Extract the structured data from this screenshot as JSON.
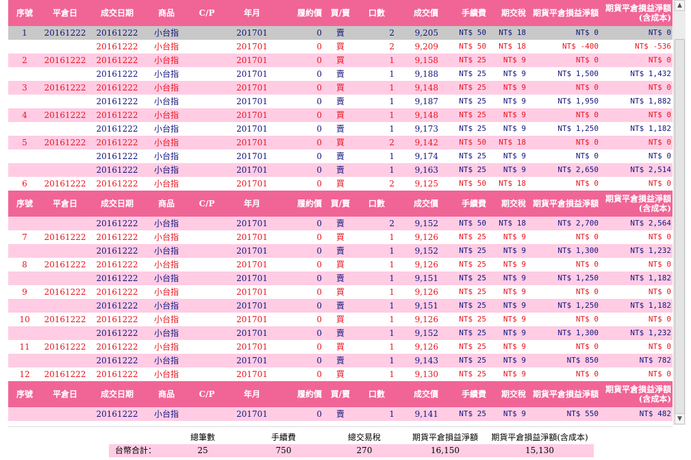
{
  "header": {
    "seq": "序號",
    "close_date": "平倉日",
    "trade_date": "成交日期",
    "product": "商品",
    "cp": "C/P",
    "month": "年月",
    "strike": "履約價",
    "side": "買/賣",
    "qty": "口數",
    "price": "成交價",
    "fee": "手續費",
    "tax": "期交稅",
    "pnl": "期貨平倉損益淨額",
    "net_line1": "期貨平倉損益淨額",
    "net_line2": "(含成本)"
  },
  "rows": [
    {
      "kind": "hdr"
    },
    {
      "seq": "1",
      "close": "20161222",
      "date": "20161222",
      "prod": "小台指",
      "month": "201701",
      "strike": "0",
      "side": "賣",
      "qty": "2",
      "price": "9,205",
      "fee": "NT$ 50",
      "tax": "NT$ 18",
      "pnl": "NT$ 0",
      "net": "NT$ 0",
      "color": "blue",
      "bg": "sel"
    },
    {
      "seq": "",
      "close": "",
      "date": "20161222",
      "prod": "小台指",
      "month": "201701",
      "strike": "0",
      "side": "買",
      "qty": "2",
      "price": "9,209",
      "fee": "NT$ 50",
      "tax": "NT$ 18",
      "pnl": "NT$ -400",
      "net": "NT$ -536",
      "color": "red",
      "bg": "white"
    },
    {
      "seq": "2",
      "close": "20161222",
      "date": "20161222",
      "prod": "小台指",
      "month": "201701",
      "strike": "0",
      "side": "買",
      "qty": "1",
      "price": "9,158",
      "fee": "NT$ 25",
      "tax": "NT$ 9",
      "pnl": "NT$ 0",
      "net": "NT$ 0",
      "color": "red",
      "bg": "pink"
    },
    {
      "seq": "",
      "close": "",
      "date": "20161222",
      "prod": "小台指",
      "month": "201701",
      "strike": "0",
      "side": "賣",
      "qty": "1",
      "price": "9,188",
      "fee": "NT$ 25",
      "tax": "NT$ 9",
      "pnl": "NT$ 1,500",
      "net": "NT$ 1,432",
      "color": "blue",
      "bg": "white"
    },
    {
      "seq": "3",
      "close": "20161222",
      "date": "20161222",
      "prod": "小台指",
      "month": "201701",
      "strike": "0",
      "side": "買",
      "qty": "1",
      "price": "9,148",
      "fee": "NT$ 25",
      "tax": "NT$ 9",
      "pnl": "NT$ 0",
      "net": "NT$ 0",
      "color": "red",
      "bg": "pink"
    },
    {
      "seq": "",
      "close": "",
      "date": "20161222",
      "prod": "小台指",
      "month": "201701",
      "strike": "0",
      "side": "賣",
      "qty": "1",
      "price": "9,187",
      "fee": "NT$ 25",
      "tax": "NT$ 9",
      "pnl": "NT$ 1,950",
      "net": "NT$ 1,882",
      "color": "blue",
      "bg": "white"
    },
    {
      "seq": "4",
      "close": "20161222",
      "date": "20161222",
      "prod": "小台指",
      "month": "201701",
      "strike": "0",
      "side": "買",
      "qty": "1",
      "price": "9,148",
      "fee": "NT$ 25",
      "tax": "NT$ 9",
      "pnl": "NT$ 0",
      "net": "NT$ 0",
      "color": "red",
      "bg": "pink"
    },
    {
      "seq": "",
      "close": "",
      "date": "20161222",
      "prod": "小台指",
      "month": "201701",
      "strike": "0",
      "side": "賣",
      "qty": "1",
      "price": "9,173",
      "fee": "NT$ 25",
      "tax": "NT$ 9",
      "pnl": "NT$ 1,250",
      "net": "NT$ 1,182",
      "color": "blue",
      "bg": "white"
    },
    {
      "seq": "5",
      "close": "20161222",
      "date": "20161222",
      "prod": "小台指",
      "month": "201701",
      "strike": "0",
      "side": "買",
      "qty": "2",
      "price": "9,142",
      "fee": "NT$ 50",
      "tax": "NT$ 18",
      "pnl": "NT$ 0",
      "net": "NT$ 0",
      "color": "red",
      "bg": "pink"
    },
    {
      "seq": "",
      "close": "",
      "date": "20161222",
      "prod": "小台指",
      "month": "201701",
      "strike": "0",
      "side": "賣",
      "qty": "1",
      "price": "9,174",
      "fee": "NT$ 25",
      "tax": "NT$ 9",
      "pnl": "NT$ 0",
      "net": "NT$ 0",
      "color": "blue",
      "bg": "white"
    },
    {
      "seq": "",
      "close": "",
      "date": "20161222",
      "prod": "小台指",
      "month": "201701",
      "strike": "0",
      "side": "賣",
      "qty": "1",
      "price": "9,163",
      "fee": "NT$ 25",
      "tax": "NT$ 9",
      "pnl": "NT$ 2,650",
      "net": "NT$ 2,514",
      "color": "blue",
      "bg": "pink"
    },
    {
      "seq": "6",
      "close": "20161222",
      "date": "20161222",
      "prod": "小台指",
      "month": "201701",
      "strike": "0",
      "side": "買",
      "qty": "2",
      "price": "9,125",
      "fee": "NT$ 50",
      "tax": "NT$ 18",
      "pnl": "NT$ 0",
      "net": "NT$ 0",
      "color": "red",
      "bg": "white"
    },
    {
      "kind": "hdr"
    },
    {
      "seq": "",
      "close": "",
      "date": "20161222",
      "prod": "小台指",
      "month": "201701",
      "strike": "0",
      "side": "賣",
      "qty": "2",
      "price": "9,152",
      "fee": "NT$ 50",
      "tax": "NT$ 18",
      "pnl": "NT$ 2,700",
      "net": "NT$ 2,564",
      "color": "blue",
      "bg": "pink"
    },
    {
      "seq": "7",
      "close": "20161222",
      "date": "20161222",
      "prod": "小台指",
      "month": "201701",
      "strike": "0",
      "side": "買",
      "qty": "1",
      "price": "9,126",
      "fee": "NT$ 25",
      "tax": "NT$ 9",
      "pnl": "NT$ 0",
      "net": "NT$ 0",
      "color": "red",
      "bg": "white"
    },
    {
      "seq": "",
      "close": "",
      "date": "20161222",
      "prod": "小台指",
      "month": "201701",
      "strike": "0",
      "side": "賣",
      "qty": "1",
      "price": "9,152",
      "fee": "NT$ 25",
      "tax": "NT$ 9",
      "pnl": "NT$ 1,300",
      "net": "NT$ 1,232",
      "color": "blue",
      "bg": "pink"
    },
    {
      "seq": "8",
      "close": "20161222",
      "date": "20161222",
      "prod": "小台指",
      "month": "201701",
      "strike": "0",
      "side": "買",
      "qty": "1",
      "price": "9,126",
      "fee": "NT$ 25",
      "tax": "NT$ 9",
      "pnl": "NT$ 0",
      "net": "NT$ 0",
      "color": "red",
      "bg": "white"
    },
    {
      "seq": "",
      "close": "",
      "date": "20161222",
      "prod": "小台指",
      "month": "201701",
      "strike": "0",
      "side": "賣",
      "qty": "1",
      "price": "9,151",
      "fee": "NT$ 25",
      "tax": "NT$ 9",
      "pnl": "NT$ 1,250",
      "net": "NT$ 1,182",
      "color": "blue",
      "bg": "pink"
    },
    {
      "seq": "9",
      "close": "20161222",
      "date": "20161222",
      "prod": "小台指",
      "month": "201701",
      "strike": "0",
      "side": "買",
      "qty": "1",
      "price": "9,126",
      "fee": "NT$ 25",
      "tax": "NT$ 9",
      "pnl": "NT$ 0",
      "net": "NT$ 0",
      "color": "red",
      "bg": "white"
    },
    {
      "seq": "",
      "close": "",
      "date": "20161222",
      "prod": "小台指",
      "month": "201701",
      "strike": "0",
      "side": "賣",
      "qty": "1",
      "price": "9,151",
      "fee": "NT$ 25",
      "tax": "NT$ 9",
      "pnl": "NT$ 1,250",
      "net": "NT$ 1,182",
      "color": "blue",
      "bg": "pink"
    },
    {
      "seq": "10",
      "close": "20161222",
      "date": "20161222",
      "prod": "小台指",
      "month": "201701",
      "strike": "0",
      "side": "買",
      "qty": "1",
      "price": "9,126",
      "fee": "NT$ 25",
      "tax": "NT$ 9",
      "pnl": "NT$ 0",
      "net": "NT$ 0",
      "color": "red",
      "bg": "white"
    },
    {
      "seq": "",
      "close": "",
      "date": "20161222",
      "prod": "小台指",
      "month": "201701",
      "strike": "0",
      "side": "賣",
      "qty": "1",
      "price": "9,152",
      "fee": "NT$ 25",
      "tax": "NT$ 9",
      "pnl": "NT$ 1,300",
      "net": "NT$ 1,232",
      "color": "blue",
      "bg": "pink"
    },
    {
      "seq": "11",
      "close": "20161222",
      "date": "20161222",
      "prod": "小台指",
      "month": "201701",
      "strike": "0",
      "side": "買",
      "qty": "1",
      "price": "9,126",
      "fee": "NT$ 25",
      "tax": "NT$ 9",
      "pnl": "NT$ 0",
      "net": "NT$ 0",
      "color": "red",
      "bg": "white"
    },
    {
      "seq": "",
      "close": "",
      "date": "20161222",
      "prod": "小台指",
      "month": "201701",
      "strike": "0",
      "side": "賣",
      "qty": "1",
      "price": "9,143",
      "fee": "NT$ 25",
      "tax": "NT$ 9",
      "pnl": "NT$ 850",
      "net": "NT$ 782",
      "color": "blue",
      "bg": "pink"
    },
    {
      "seq": "12",
      "close": "20161222",
      "date": "20161222",
      "prod": "小台指",
      "month": "201701",
      "strike": "0",
      "side": "買",
      "qty": "1",
      "price": "9,130",
      "fee": "NT$ 25",
      "tax": "NT$ 9",
      "pnl": "NT$ 0",
      "net": "NT$ 0",
      "color": "red",
      "bg": "white"
    },
    {
      "kind": "hdr"
    },
    {
      "seq": "",
      "close": "",
      "date": "20161222",
      "prod": "小台指",
      "month": "201701",
      "strike": "0",
      "side": "賣",
      "qty": "1",
      "price": "9,141",
      "fee": "NT$ 25",
      "tax": "NT$ 9",
      "pnl": "NT$ 550",
      "net": "NT$ 482",
      "color": "blue",
      "bg": "pink"
    }
  ],
  "footer": {
    "headers": [
      "總筆數",
      "手續費",
      "總交易稅",
      "期貨平倉損益淨額",
      "期貨平倉損益淨額(含成本)"
    ],
    "label": "台幣合計：",
    "values": [
      "25",
      "750",
      "270",
      "16,150",
      "15,130"
    ]
  },
  "colors": {
    "header_bg": "#f06596",
    "pink_row": "#ffcce4",
    "sell_text": "#13137e",
    "buy_text": "#e8141e"
  }
}
